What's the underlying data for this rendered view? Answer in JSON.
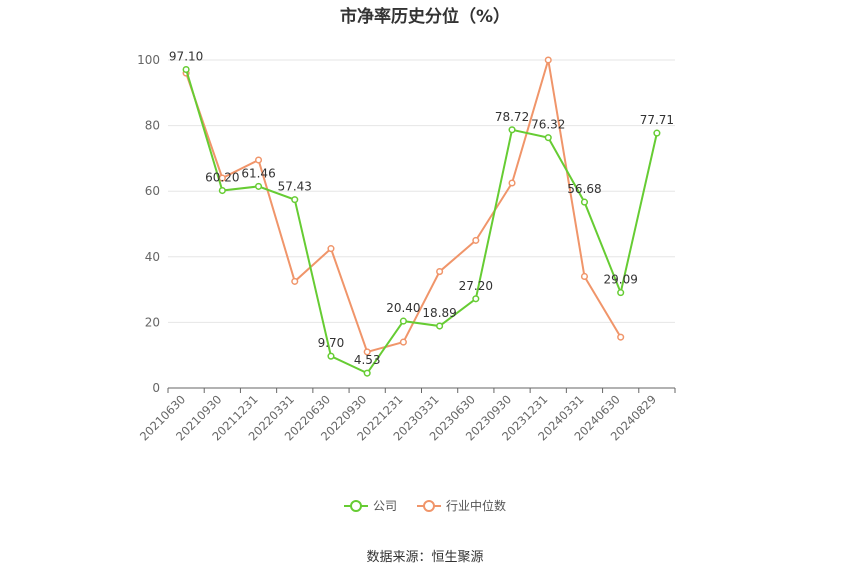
{
  "chart_data": {
    "type": "line",
    "title": "市净率历史分位（%）",
    "categories": [
      "20210630",
      "20210930",
      "20211231",
      "20220331",
      "20220630",
      "20220930",
      "20221231",
      "20230331",
      "20230630",
      "20230930",
      "20231231",
      "20240331",
      "20240630",
      "20240829"
    ],
    "ylim": [
      0,
      100
    ],
    "yticks": [
      0,
      20,
      40,
      60,
      80,
      100
    ],
    "grid": true,
    "legend_position": "bottom",
    "series": [
      {
        "name": "公司",
        "color": "#66cc33",
        "values": [
          97.1,
          60.2,
          61.46,
          57.43,
          9.7,
          4.53,
          20.4,
          18.89,
          27.2,
          78.72,
          76.32,
          56.68,
          29.09,
          77.71
        ],
        "labels": [
          "97.10",
          "60.20",
          "61.46",
          "57.43",
          "9.70",
          "4.53",
          "20.40",
          "18.89",
          "27.20",
          "78.72",
          "76.32",
          "56.68",
          "29.09",
          "77.71"
        ]
      },
      {
        "name": "行业中位数",
        "color": "#f0956a",
        "values": [
          96.0,
          64.0,
          69.5,
          32.5,
          42.5,
          11.0,
          14.0,
          35.5,
          45.0,
          62.5,
          100.0,
          34.0,
          15.5,
          null
        ]
      }
    ]
  },
  "source": "数据来源：恒生聚源"
}
